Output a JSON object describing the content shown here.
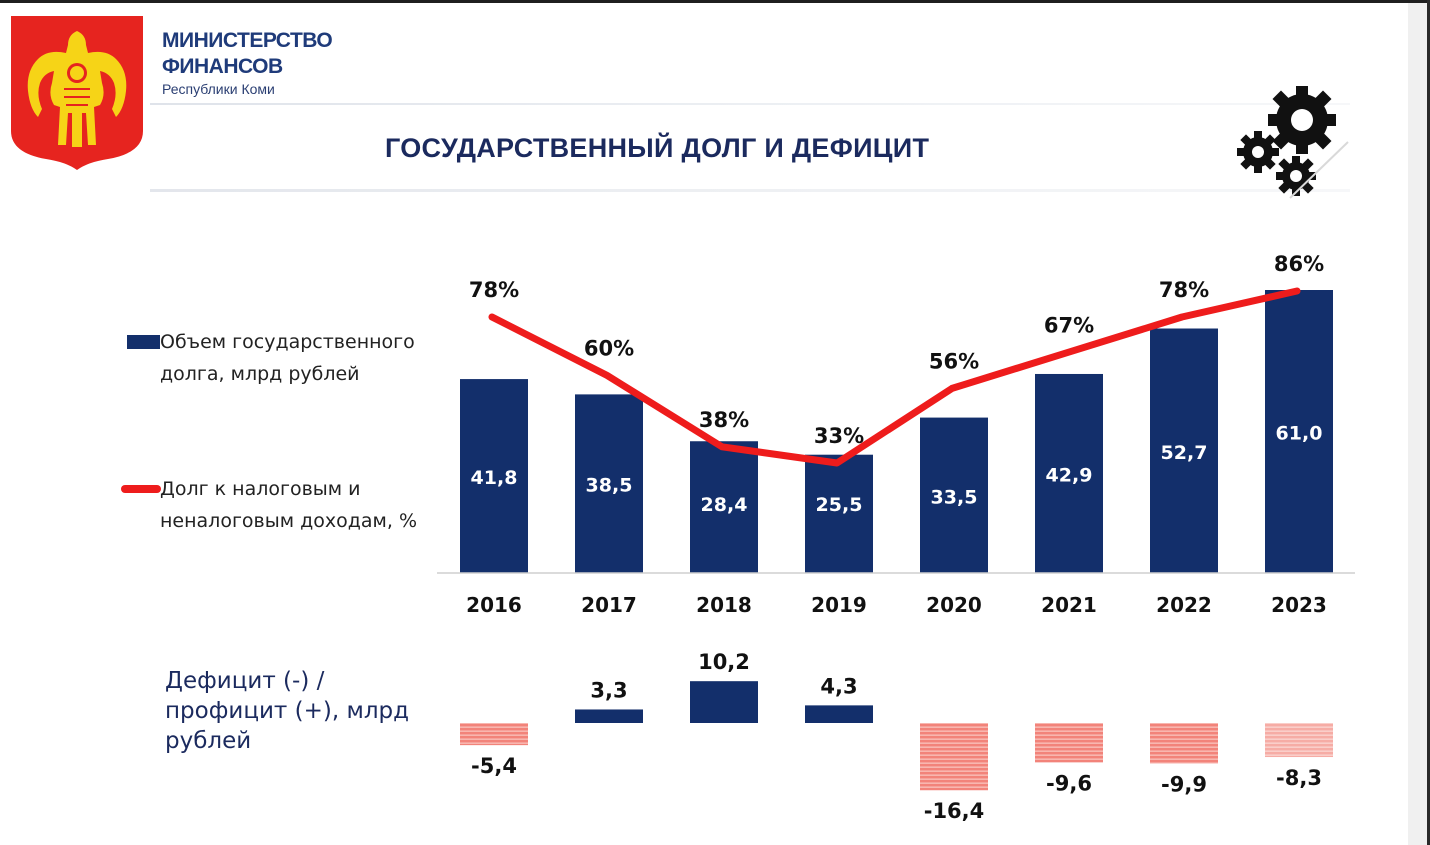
{
  "header": {
    "ministry_line1": "МИНИСТЕРСТВО",
    "ministry_line2": "ФИНАНСОВ",
    "ministry_sub": "Республики Коми",
    "title": "ГОСУДАРСТВЕННЫЙ ДОЛГ И ДЕФИЦИТ"
  },
  "icons": {
    "emblem": "komi-coat-of-arms-icon",
    "gears": "gears-icon"
  },
  "legend": {
    "bars_line1": "Объем государственного",
    "bars_line2": "долга, млрд рублей",
    "line_line1": "Долг к налоговым и",
    "line_line2": "неналоговым доходам, %"
  },
  "deficit": {
    "label_line1": "Дефицит (-) /",
    "label_line2": "профицит (+), млрд",
    "label_line3": "рублей"
  },
  "colors": {
    "bar": "#132f6b",
    "line": "#ee1c1c",
    "deficit_negative": "#f2837a",
    "deficit_negative_light": "#f6b1ab",
    "title": "#1b2a5e"
  },
  "chart_data": [
    {
      "type": "bar",
      "categories": [
        "2016",
        "2017",
        "2018",
        "2019",
        "2020",
        "2021",
        "2022",
        "2023"
      ],
      "series": [
        {
          "name": "Объем государственного долга, млрд рублей",
          "values": [
            41.8,
            38.5,
            28.4,
            25.5,
            33.5,
            42.9,
            52.7,
            61.0
          ],
          "labels": [
            "41,8",
            "38,5",
            "28,4",
            "25,5",
            "33,5",
            "42,9",
            "52,7",
            "61,0"
          ]
        }
      ],
      "ylim": [
        0,
        61
      ]
    },
    {
      "type": "line",
      "categories": [
        "2016",
        "2017",
        "2018",
        "2019",
        "2020",
        "2021",
        "2022",
        "2023"
      ],
      "series": [
        {
          "name": "Долг к налоговым и неналоговым доходам, %",
          "values": [
            78,
            60,
            38,
            33,
            56,
            67,
            78,
            86
          ],
          "labels": [
            "78%",
            "60%",
            "38%",
            "33%",
            "56%",
            "67%",
            "78%",
            "86%"
          ]
        }
      ],
      "ylim": [
        0,
        100
      ]
    },
    {
      "type": "bar",
      "categories": [
        "2016",
        "2017",
        "2018",
        "2019",
        "2020",
        "2021",
        "2022",
        "2023"
      ],
      "series": [
        {
          "name": "Дефицит (-) / профицит (+), млрд рублей",
          "values": [
            -5.4,
            3.3,
            10.2,
            4.3,
            -16.4,
            -9.6,
            -9.9,
            -8.3
          ],
          "labels": [
            "-5,4",
            "3,3",
            "10,2",
            "4,3",
            "-16,4",
            "-9,6",
            "-9,9",
            "-8,3"
          ]
        }
      ]
    }
  ]
}
